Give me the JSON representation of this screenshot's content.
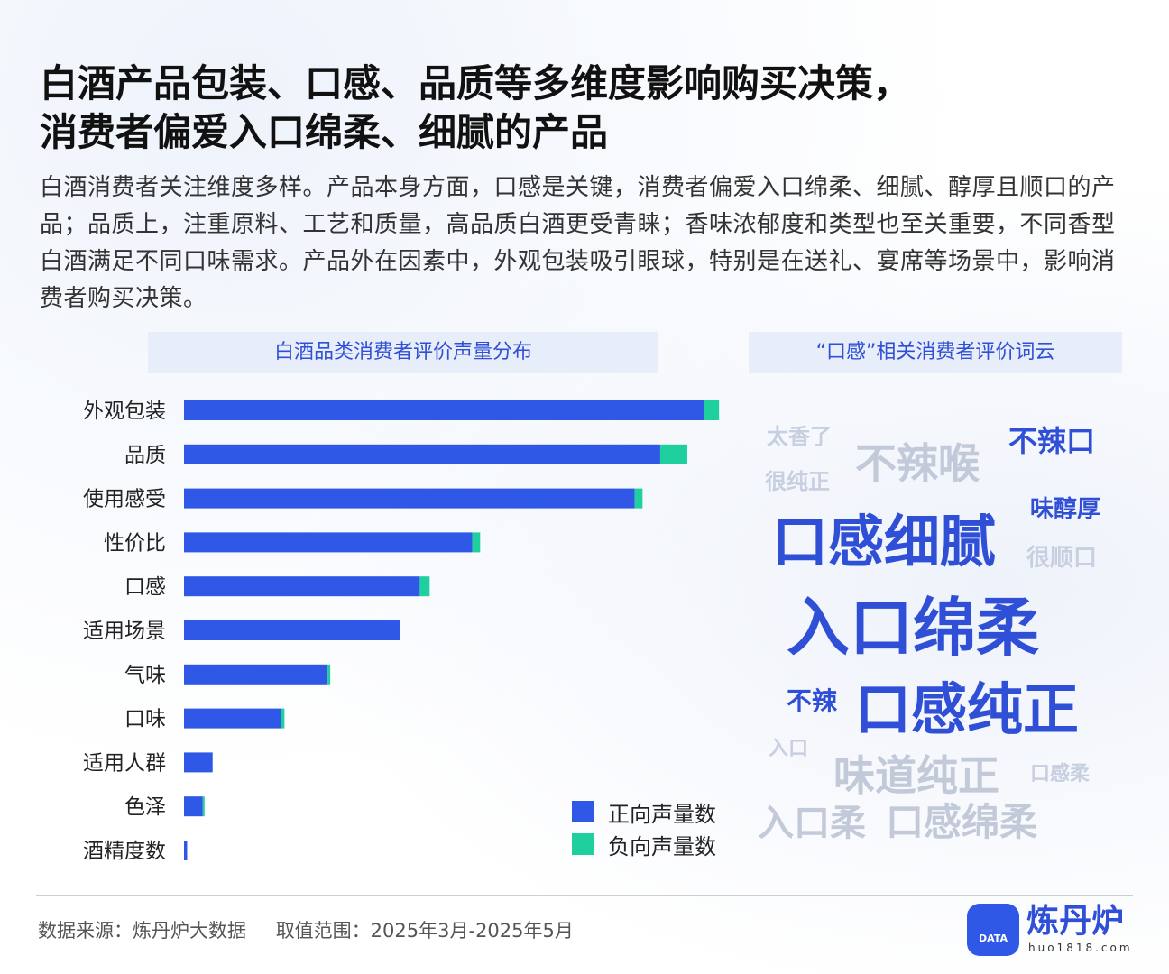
{
  "header": {
    "title_line1": "白酒产品包装、口感、品质等多维度影响购买决策，",
    "title_line2": "消费者偏爱入口绵柔、细腻的产品",
    "intro": "白酒消费者关注维度多样。产品本身方面，口感是关键，消费者偏爱入口绵柔、细腻、醇厚且顺口的产品；品质上，注重原料、工艺和质量，高品质白酒更受青睐；香味浓郁度和类型也至关重要，不同香型白酒满足不同口味需求。产品外在因素中，外观包装吸引眼球，特别是在送礼、宴席等场景中，影响消费者购买决策。"
  },
  "left_panel": {
    "title": "白酒品类消费者评价声量分布"
  },
  "right_panel": {
    "title": "“口感”相关消费者评价词云"
  },
  "chart_data": {
    "type": "bar",
    "orientation": "horizontal",
    "stacked": true,
    "categories": [
      "外观包装",
      "品质",
      "使用感受",
      "性价比",
      "口感",
      "适用场景",
      "气味",
      "口味",
      "适用人群",
      "色泽",
      "酒精度数"
    ],
    "series": [
      {
        "name": "正向声量数",
        "color": "#2f58e6",
        "values": [
          100,
          91.5,
          86.6,
          55.4,
          45.3,
          41.5,
          27.6,
          18.6,
          5.5,
          3.6,
          0.6
        ]
      },
      {
        "name": "负向声量数",
        "color": "#1fcf9e",
        "values": [
          2.8,
          5.2,
          1.5,
          1.5,
          1.9,
          0,
          0.5,
          0.7,
          0,
          0.3,
          0
        ]
      }
    ],
    "xlim": [
      0,
      103
    ],
    "axis_visible": false,
    "grid": false,
    "legend_position": "bottom-right"
  },
  "legend": {
    "positive": "正向声量数",
    "negative": "负向声量数",
    "positive_color": "#2f58e6",
    "negative_color": "#1fcf9e"
  },
  "word_cloud": [
    {
      "text": "太香了",
      "weight": 1
    },
    {
      "text": "不辣喉",
      "weight": 3
    },
    {
      "text": "不辣口",
      "weight": 2
    },
    {
      "text": "很纯正",
      "weight": 1
    },
    {
      "text": "味醇厚",
      "weight": 2
    },
    {
      "text": "口感细腻",
      "weight": 5
    },
    {
      "text": "很顺口",
      "weight": 1
    },
    {
      "text": "入口绵柔",
      "weight": 6
    },
    {
      "text": "不辣",
      "weight": 2
    },
    {
      "text": "口感纯正",
      "weight": 5
    },
    {
      "text": "入口",
      "weight": 1
    },
    {
      "text": "味道纯正",
      "weight": 4
    },
    {
      "text": "口感柔",
      "weight": 1
    },
    {
      "text": "入口柔",
      "weight": 3
    },
    {
      "text": "口感绵柔",
      "weight": 3
    }
  ],
  "footer": {
    "source": "数据来源：炼丹炉大数据",
    "range": "取值范围：2025年3月-2025年5月"
  },
  "brand": {
    "name": "炼丹炉",
    "url": "huo1818.com",
    "icon_label": "DATA",
    "icon": "cauldron-logo-icon",
    "color": "#2f4fd6"
  }
}
